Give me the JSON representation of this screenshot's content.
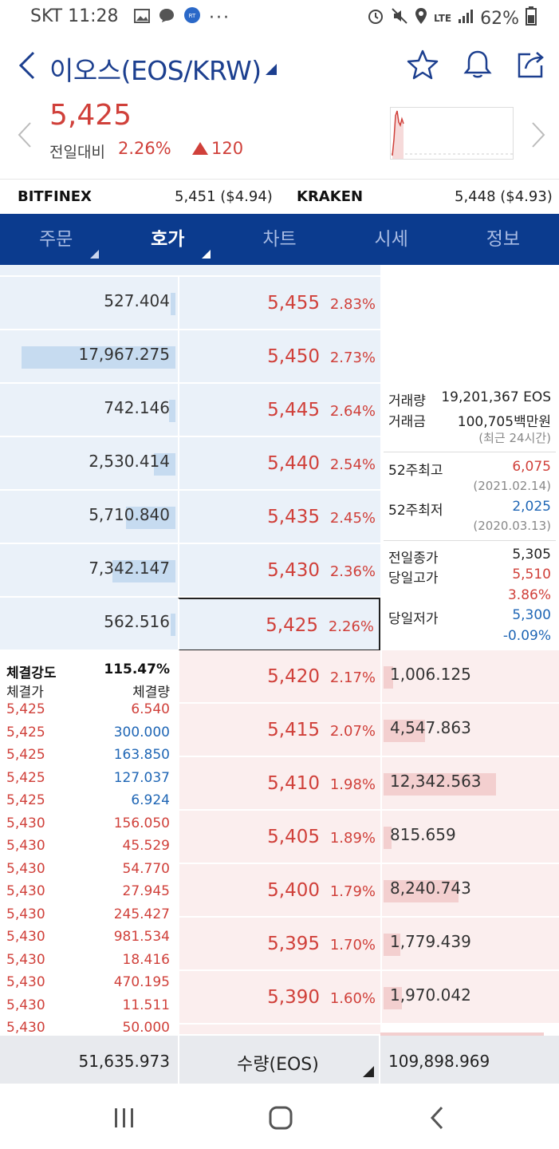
{
  "status": {
    "carrier": "SKT",
    "time": "11:28",
    "net": "LTE",
    "battery": "62%"
  },
  "header": {
    "title": "이오스(EOS/KRW)",
    "price": "5,425",
    "change_label": "전일대비",
    "change_pct": "2.26%",
    "change_abs": "120"
  },
  "exchanges": [
    {
      "name": "BITFINEX",
      "value": "5,451 ($4.94)"
    },
    {
      "name": "KRAKEN",
      "value": "5,448 ($4.93)"
    }
  ],
  "tabs": [
    {
      "label": "주문"
    },
    {
      "label": "호가"
    },
    {
      "label": "차트"
    },
    {
      "label": "시세"
    },
    {
      "label": "정보"
    }
  ],
  "asks": [
    {
      "qty": "527.404",
      "price": "5,455",
      "pct": "2.83%",
      "bar": 0.03
    },
    {
      "qty": "17,967.275",
      "price": "5,450",
      "pct": "2.73%",
      "bar": 0.93
    },
    {
      "qty": "742.146",
      "price": "5,445",
      "pct": "2.64%",
      "bar": 0.04
    },
    {
      "qty": "2,530.414",
      "price": "5,440",
      "pct": "2.54%",
      "bar": 0.13
    },
    {
      "qty": "5,710.840",
      "price": "5,435",
      "pct": "2.45%",
      "bar": 0.3
    },
    {
      "qty": "7,342.147",
      "price": "5,430",
      "pct": "2.36%",
      "bar": 0.38
    },
    {
      "qty": "562.516",
      "price": "5,425",
      "pct": "2.26%",
      "bar": 0.03
    }
  ],
  "bids": [
    {
      "qty": "1,006.125",
      "price": "5,420",
      "pct": "2.17%",
      "bar": 0.06
    },
    {
      "qty": "4,547.863",
      "price": "5,415",
      "pct": "2.07%",
      "bar": 0.25
    },
    {
      "qty": "12,342.563",
      "price": "5,410",
      "pct": "1.98%",
      "bar": 0.68
    },
    {
      "qty": "815.659",
      "price": "5,405",
      "pct": "1.89%",
      "bar": 0.05
    },
    {
      "qty": "8,240.743",
      "price": "5,400",
      "pct": "1.79%",
      "bar": 0.45
    },
    {
      "qty": "1,779.439",
      "price": "5,395",
      "pct": "1.70%",
      "bar": 0.1
    },
    {
      "qty": "1,970.042",
      "price": "5,390",
      "pct": "1.60%",
      "bar": 0.11
    }
  ],
  "info": {
    "volume_label": "거래량",
    "volume": "19,201,367 EOS",
    "amount_label": "거래금",
    "amount": "100,705백만원",
    "period_note": "(최근 24시간)",
    "high52_label": "52주최고",
    "high52": "6,075",
    "high52_date": "(2021.02.14)",
    "low52_label": "52주최저",
    "low52": "2,025",
    "low52_date": "(2020.03.13)",
    "prev_close_label": "전일종가",
    "prev_close": "5,305",
    "day_high_label": "당일고가",
    "day_high": "5,510",
    "day_high_pct": "3.86%",
    "day_low_label": "당일저가",
    "day_low": "5,300",
    "day_low_pct": "-0.09%"
  },
  "trades": {
    "strength_label": "체결강도",
    "strength": "115.47%",
    "price_header": "체결가",
    "qty_header": "체결량",
    "rows": [
      {
        "price": "5,425",
        "qty": "6.540",
        "side": "buy"
      },
      {
        "price": "5,425",
        "qty": "300.000",
        "side": "sell"
      },
      {
        "price": "5,425",
        "qty": "163.850",
        "side": "sell"
      },
      {
        "price": "5,425",
        "qty": "127.037",
        "side": "sell"
      },
      {
        "price": "5,425",
        "qty": "6.924",
        "side": "sell"
      },
      {
        "price": "5,430",
        "qty": "156.050",
        "side": "buy"
      },
      {
        "price": "5,430",
        "qty": "45.529",
        "side": "buy"
      },
      {
        "price": "5,430",
        "qty": "54.770",
        "side": "buy"
      },
      {
        "price": "5,430",
        "qty": "27.945",
        "side": "buy"
      },
      {
        "price": "5,430",
        "qty": "245.427",
        "side": "buy"
      },
      {
        "price": "5,430",
        "qty": "981.534",
        "side": "buy"
      },
      {
        "price": "5,430",
        "qty": "18.416",
        "side": "buy"
      },
      {
        "price": "5,430",
        "qty": "470.195",
        "side": "buy"
      },
      {
        "price": "5,430",
        "qty": "11.511",
        "side": "buy"
      },
      {
        "price": "5,430",
        "qty": "50.000",
        "side": "buy"
      }
    ]
  },
  "footer": {
    "ask_total": "51,635.973",
    "unit": "수량(EOS)",
    "bid_total": "109,898.969"
  },
  "colors": {
    "up": "#d0403a",
    "down": "#1f66b5",
    "tab_bg": "#0b3b8e"
  }
}
